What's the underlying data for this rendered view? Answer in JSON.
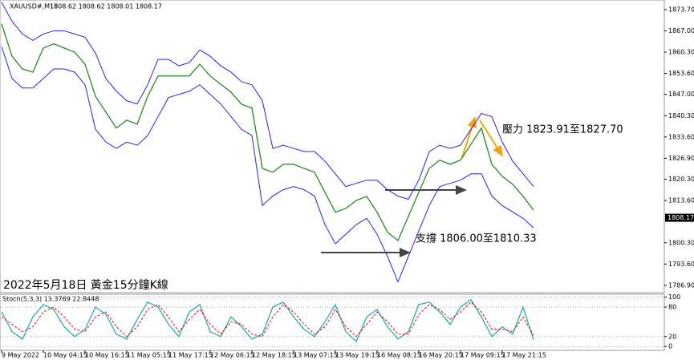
{
  "chart_data": [
    {
      "type": "line",
      "title": "XAUUSD#,M15",
      "subtitle": "1808.62 1808.62 1808.01 1808.17",
      "annotations": [
        "壓力 1823.91至1827.70",
        "支撐 1806.00至1810.33",
        "2022年5月18日 黃金15分鐘K線"
      ],
      "last_price": 1808.17,
      "ylim": [
        1784.6,
        1876.7
      ],
      "yticks": [
        {
          "value": 1873.7,
          "label": "1873.70"
        },
        {
          "value": 1867.0,
          "label": "1867.00"
        },
        {
          "value": 1860.3,
          "label": "1860.30"
        },
        {
          "value": 1853.6,
          "label": "1853.60"
        },
        {
          "value": 1847.0,
          "label": "1847.00"
        },
        {
          "value": 1840.3,
          "label": "1840.30"
        },
        {
          "value": 1833.6,
          "label": "1833.60"
        },
        {
          "value": 1826.9,
          "label": "1826.90"
        },
        {
          "value": 1820.3,
          "label": "1820.30"
        },
        {
          "value": 1813.6,
          "label": "1813.60"
        },
        {
          "value": 1800.3,
          "label": "1800.30"
        },
        {
          "value": 1793.6,
          "label": "1793.60"
        },
        {
          "value": 1786.9,
          "label": "1786.90"
        }
      ],
      "series": [
        {
          "color": "#1e8c1e",
          "values": [
            1869.2,
            1859,
            1855,
            1854,
            1861.6,
            1862.9,
            1861.6,
            1860.3,
            1856.5,
            1846.4,
            1841.4,
            1836.4,
            1838.9,
            1837.6,
            1846.4,
            1852.8,
            1852.8,
            1852.8,
            1852.8,
            1856.5,
            1852.8,
            1850.2,
            1847.7,
            1843.9,
            1842.7,
            1823.7,
            1822.5,
            1825,
            1825,
            1823.7,
            1822.5,
            1816.2,
            1809.9,
            1811.1,
            1813.6,
            1814.9,
            1809.9,
            1803.6,
            1801,
            1808.6,
            1816.2,
            1823.7,
            1826.3,
            1825,
            1826.3,
            1831.3,
            1836.4,
            1825,
            1821.2,
            1818.7,
            1814.9,
            1810.6
          ]
        },
        {
          "color": "#2020ff",
          "values": [
            1876,
            1870,
            1866,
            1864,
            1866,
            1867,
            1867,
            1866,
            1865,
            1860,
            1852,
            1848,
            1845,
            1844,
            1850,
            1858,
            1858,
            1856,
            1857,
            1861,
            1859,
            1856,
            1854,
            1851,
            1850,
            1845,
            1830,
            1831,
            1830,
            1829,
            1829,
            1826,
            1822,
            1818,
            1819,
            1820,
            1820,
            1817,
            1815,
            1814,
            1820,
            1829,
            1831,
            1830,
            1831,
            1836,
            1841,
            1840,
            1832,
            1826,
            1822,
            1818
          ]
        },
        {
          "color": "#2020ff",
          "values": [
            1862,
            1852,
            1849,
            1849,
            1852,
            1855,
            1855,
            1854,
            1850,
            1836,
            1832,
            1830,
            1832,
            1831,
            1834,
            1840,
            1846,
            1847,
            1848,
            1850,
            1847,
            1844,
            1840,
            1836,
            1834,
            1812,
            1815,
            1817,
            1818,
            1817,
            1815,
            1806,
            1800,
            1803,
            1806,
            1808,
            1803,
            1796,
            1788,
            1796,
            1804,
            1812,
            1818,
            1819,
            1820,
            1822,
            1822,
            1815,
            1812,
            1810,
            1808,
            1805
          ]
        }
      ]
    },
    {
      "type": "line",
      "title": "Stoch(5,3,3) 13.3769 22.8448",
      "ylim": [
        -8,
        106
      ],
      "yticks": [
        100,
        80,
        20,
        0
      ],
      "categories": [
        "9 May 2022",
        null,
        null,
        null,
        "10 May 04:15",
        null,
        null,
        null,
        "10 May 16:15",
        null,
        null,
        null,
        "11 May 05:15",
        null,
        null,
        null,
        "11 May 17:15",
        null,
        null,
        null,
        "12 May 06:15",
        null,
        null,
        null,
        "12 May 18:15",
        null,
        null,
        null,
        "13 May 07:15",
        null,
        null,
        null,
        "13 May 19:15",
        null,
        null,
        null,
        "16 May 08:15",
        null,
        null,
        null,
        "16 May 20:15",
        null,
        null,
        null,
        "17 May 09:15",
        null,
        null,
        null,
        "17 May 21:15",
        null,
        null,
        null
      ],
      "series": [
        {
          "color": "#20b2aa",
          "values": [
            70,
            30,
            15,
            60,
            85,
            75,
            40,
            20,
            35,
            80,
            65,
            25,
            15,
            55,
            90,
            80,
            45,
            20,
            70,
            85,
            30,
            20,
            60,
            40,
            15,
            25,
            80,
            90,
            60,
            35,
            20,
            50,
            85,
            30,
            10,
            60,
            75,
            40,
            15,
            30,
            85,
            90,
            70,
            45,
            80,
            95,
            60,
            20,
            40,
            25,
            80,
            13.4
          ]
        },
        {
          "color": "#ff0000",
          "values": [
            60,
            45,
            30,
            40,
            70,
            80,
            60,
            35,
            30,
            60,
            70,
            40,
            20,
            40,
            75,
            85,
            60,
            30,
            55,
            75,
            45,
            25,
            50,
            45,
            25,
            20,
            60,
            85,
            70,
            45,
            25,
            40,
            75,
            40,
            20,
            45,
            70,
            50,
            25,
            25,
            65,
            85,
            75,
            55,
            70,
            90,
            70,
            35,
            35,
            30,
            60,
            22.8
          ]
        }
      ]
    }
  ]
}
